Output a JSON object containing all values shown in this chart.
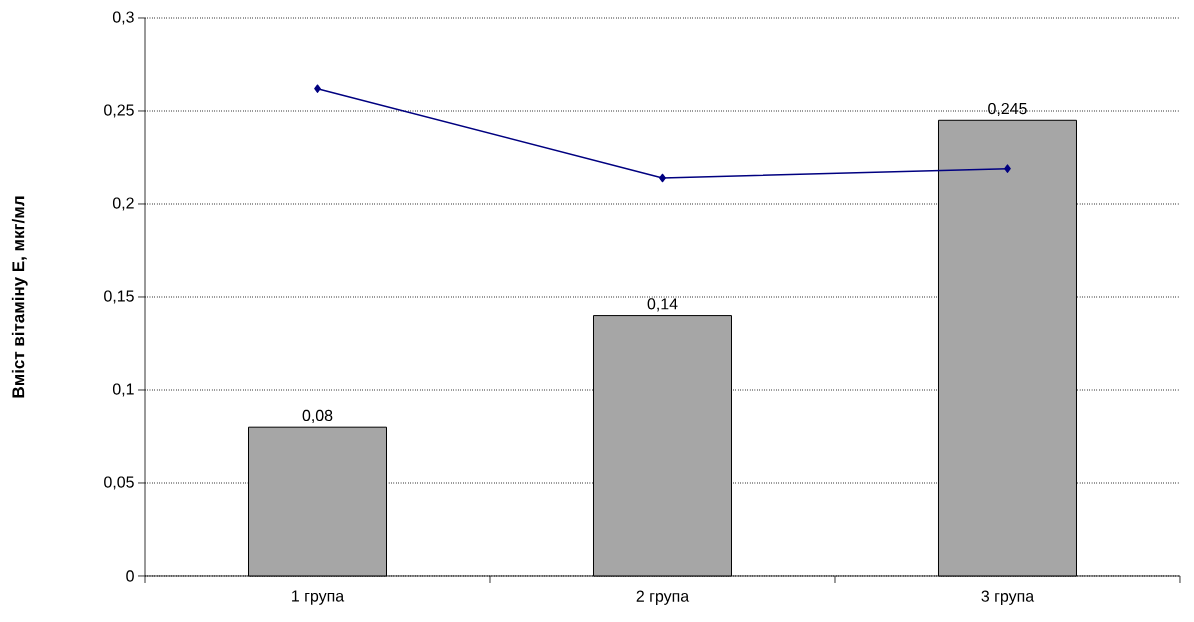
{
  "chart_data": {
    "type": "bar",
    "ylabel": "**Вміст вітаміну Е, мкг/мл**",
    "categories": [
      "1 група",
      "2 група",
      "3 група"
    ],
    "ylim": [
      0,
      0.3
    ],
    "yticks": [
      0,
      {
        "value": 0.05,
        "label": "0,05"
      },
      {
        "value": 0.1,
        "label": "0,1"
      },
      {
        "value": 0.15,
        "label": "0,15"
      },
      {
        "value": 0.2,
        "label": "0,2"
      },
      {
        "value": 0.25,
        "label": "0,25"
      },
      {
        "value": 0.3,
        "label": "0,3"
      }
    ],
    "grid": "y",
    "series": [
      {
        "color": "#a6a6a6",
        "values": [
          0.08,
          0.14,
          0.245
        ],
        "value_labels": [
          "0,08",
          "0,14",
          "0,245"
        ]
      },
      {
        "type": "line",
        "color": "#000080",
        "values": [
          0.262,
          0.214,
          0.219
        ],
        "marker": "diamond"
      }
    ]
  }
}
